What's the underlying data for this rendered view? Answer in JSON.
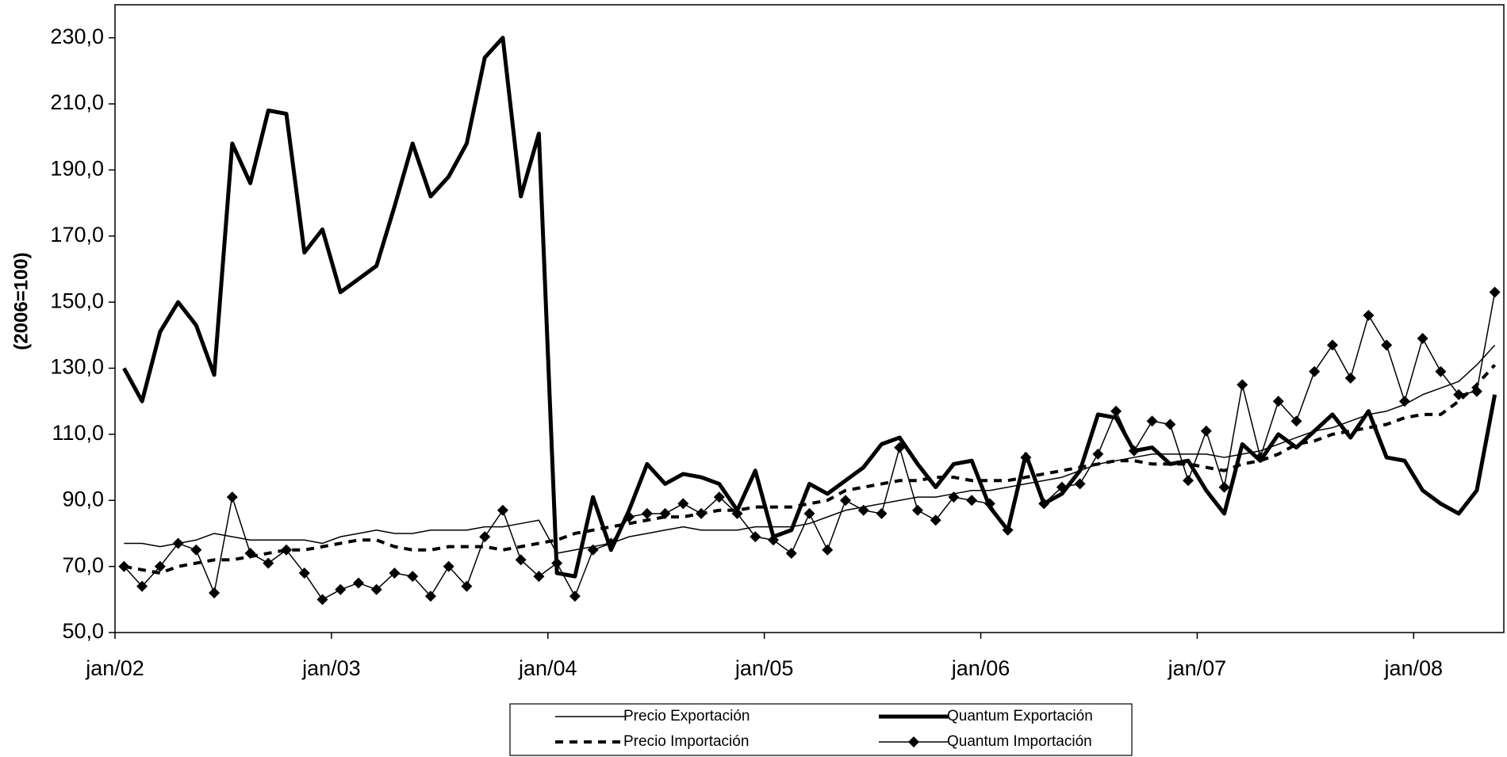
{
  "chart_data": {
    "type": "line",
    "y_label": "(2006=100)",
    "categories": [
      "jan/02",
      null,
      null,
      null,
      null,
      null,
      null,
      null,
      null,
      null,
      null,
      null,
      "jan/03",
      null,
      null,
      null,
      null,
      null,
      null,
      null,
      null,
      null,
      null,
      null,
      "jan/04",
      null,
      null,
      null,
      null,
      null,
      null,
      null,
      null,
      null,
      null,
      null,
      "jan/05",
      null,
      null,
      null,
      null,
      null,
      null,
      null,
      null,
      null,
      null,
      null,
      "jan/06",
      null,
      null,
      null,
      null,
      null,
      null,
      null,
      null,
      null,
      null,
      null,
      "jan/07",
      null,
      null,
      null,
      null,
      null,
      null,
      null,
      null,
      null,
      null,
      null,
      "jan/08",
      null,
      null,
      null,
      null
    ],
    "ylim": [
      50,
      240
    ],
    "yticks": [
      {
        "value": 50,
        "label": "50,0"
      },
      {
        "value": 70,
        "label": "70,0"
      },
      {
        "value": 90,
        "label": "90,0"
      },
      {
        "value": 110,
        "label": "110,0"
      },
      {
        "value": 130,
        "label": "130,0"
      },
      {
        "value": 150,
        "label": "150,0"
      },
      {
        "value": 170,
        "label": "170,0"
      },
      {
        "value": 190,
        "label": "190,0"
      },
      {
        "value": 210,
        "label": "210,0"
      },
      {
        "value": 230,
        "label": "230,0"
      }
    ],
    "series": [
      {
        "name": "Precio Exportación",
        "color": "#000000",
        "line_width": 1.5,
        "dash": false,
        "marker": false,
        "values": [
          77,
          77,
          76,
          77,
          78,
          80,
          79,
          78,
          78,
          78,
          78,
          77,
          79,
          80,
          81,
          80,
          80,
          81,
          81,
          81,
          82,
          82,
          83,
          84,
          74,
          75,
          76,
          77,
          79,
          80,
          81,
          82,
          81,
          81,
          81,
          82,
          82,
          82,
          83,
          85,
          87,
          88,
          89,
          90,
          91,
          91,
          92,
          93,
          93,
          94,
          95,
          96,
          97,
          99,
          101,
          102,
          103,
          104,
          104,
          104,
          104,
          103,
          104,
          105,
          107,
          109,
          111,
          112,
          114,
          116,
          117,
          119,
          122,
          124,
          126,
          131,
          137
        ]
      },
      {
        "name": "Quantum Exportación",
        "color": "#000000",
        "line_width": 5,
        "dash": false,
        "marker": false,
        "values": [
          130,
          120,
          141,
          150,
          143,
          128,
          198,
          186,
          208,
          207,
          165,
          172,
          153,
          157,
          161,
          179,
          198,
          182,
          188,
          198,
          224,
          230,
          182,
          201,
          68,
          67,
          91,
          75,
          87,
          101,
          95,
          98,
          97,
          95,
          87,
          99,
          79,
          81,
          95,
          92,
          96,
          100,
          107,
          109,
          101,
          94,
          101,
          102,
          88,
          81,
          104,
          89,
          92,
          99,
          116,
          115,
          105,
          106,
          101,
          102,
          93,
          86,
          107,
          102,
          110,
          106,
          111,
          116,
          109,
          117,
          103,
          102,
          93,
          89,
          86,
          93,
          122
        ]
      },
      {
        "name": "Precio Importación",
        "color": "#000000",
        "line_width": 4,
        "dash": true,
        "marker": false,
        "values": [
          70,
          69,
          68,
          70,
          71,
          72,
          72,
          73,
          74,
          75,
          75,
          76,
          77,
          78,
          78,
          76,
          75,
          75,
          76,
          76,
          76,
          75,
          76,
          77,
          78,
          80,
          81,
          82,
          83,
          84,
          85,
          85,
          86,
          87,
          87,
          88,
          88,
          88,
          89,
          90,
          93,
          94,
          95,
          96,
          96,
          97,
          97,
          96,
          96,
          96,
          97,
          98,
          99,
          100,
          101,
          102,
          102,
          101,
          101,
          101,
          100,
          99,
          101,
          102,
          104,
          107,
          108,
          110,
          111,
          112,
          113,
          115,
          116,
          116,
          120,
          125,
          131
        ]
      },
      {
        "name": "Quantum Importación",
        "color": "#000000",
        "line_width": 1.5,
        "dash": false,
        "marker": true,
        "values": [
          70,
          64,
          70,
          77,
          75,
          62,
          91,
          74,
          71,
          75,
          68,
          60,
          63,
          65,
          63,
          68,
          67,
          61,
          70,
          64,
          79,
          87,
          72,
          67,
          71,
          61,
          75,
          77,
          85,
          86,
          86,
          89,
          86,
          91,
          86,
          79,
          78,
          74,
          86,
          75,
          90,
          87,
          86,
          106,
          87,
          84,
          91,
          90,
          89,
          81,
          103,
          89,
          94,
          95,
          104,
          117,
          105,
          114,
          113,
          96,
          111,
          94,
          125,
          103,
          120,
          114,
          129,
          137,
          127,
          146,
          137,
          120,
          139,
          129,
          122,
          123,
          153
        ]
      }
    ]
  }
}
